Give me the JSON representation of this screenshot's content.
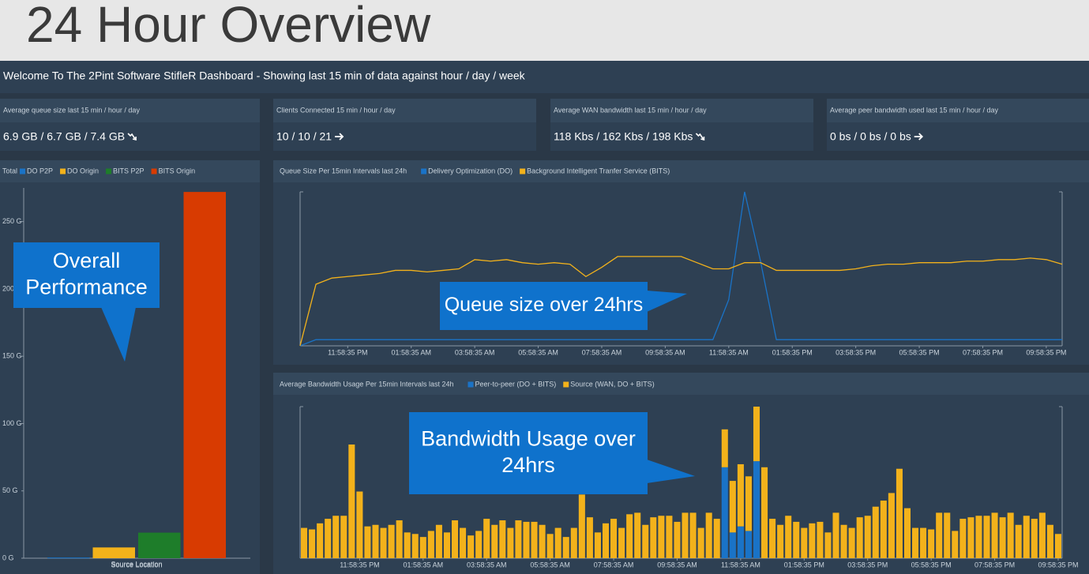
{
  "header": {
    "title": "24 Hour Overview"
  },
  "welcome": "Welcome To The 2Pint Software StifleR Dashboard - Showing last 15 min of data against hour / day / week",
  "tiles": [
    {
      "label": "Average queue size last 15 min / hour / day",
      "value": "6.9 GB / 6.7 GB / 7.4 GB",
      "trend": "down"
    },
    {
      "label": "Clients Connected 15 min / hour / day",
      "value": "10 / 10 / 21",
      "trend": "flat"
    },
    {
      "label": "Average WAN bandwidth last 15 min / hour / day",
      "value": "118 Kbs / 162 Kbs / 198 Kbs",
      "trend": "down"
    },
    {
      "label": "Average peer bandwidth used last 15 min / hour / day",
      "value": "0 bs / 0 bs / 0 bs",
      "trend": "flat"
    }
  ],
  "charts": [
    {
      "type": "bar",
      "legend_title": "Total",
      "xlabel": "Source Location",
      "categories": [
        "Source Location"
      ],
      "series": [
        {
          "name": "DO P2P",
          "color": "#1a73c7",
          "values": [
            0.5
          ]
        },
        {
          "name": "DO Origin",
          "color": "#f3b21b",
          "values": [
            8
          ]
        },
        {
          "name": "BITS P2P",
          "color": "#1e7d2a",
          "values": [
            19
          ]
        },
        {
          "name": "BITS Origin",
          "color": "#d83b01",
          "values": [
            272
          ]
        }
      ],
      "ylim": [
        0,
        275
      ],
      "yticks": [
        {
          "value": 0,
          "label": "0 G"
        },
        {
          "value": 50,
          "label": "50 G"
        },
        {
          "value": 100,
          "label": "100 G"
        },
        {
          "value": 150,
          "label": "150 G"
        },
        {
          "value": 200,
          "label": "200 G"
        },
        {
          "value": 250,
          "label": "250 G"
        }
      ],
      "annotation": [
        "Overall",
        "Performance"
      ]
    },
    {
      "type": "line",
      "title": "Queue Size Per 15min Intervals last 24h",
      "categories": [
        null,
        null,
        null,
        "11:58:35 PM",
        null,
        null,
        null,
        "01:58:35 AM",
        null,
        null,
        null,
        "03:58:35 AM",
        null,
        null,
        null,
        "05:58:35 AM",
        null,
        null,
        null,
        "07:58:35 AM",
        null,
        null,
        null,
        "09:58:35 AM",
        null,
        null,
        null,
        "11:58:35 AM",
        null,
        null,
        null,
        "01:58:35 PM",
        null,
        null,
        null,
        "03:58:35 PM",
        null,
        null,
        null,
        "05:58:35 PM",
        null,
        null,
        null,
        "07:58:35 PM",
        null,
        null,
        null,
        "09:58:35 PM",
        null
      ],
      "series": [
        {
          "name": "Delivery Optimization (DO)",
          "color": "#1a73c7",
          "values": [
            0,
            4,
            4,
            4,
            4,
            4,
            4,
            4,
            4,
            4,
            4,
            4,
            4,
            4,
            4,
            4,
            4,
            4,
            4,
            4,
            4,
            4,
            4,
            4,
            4,
            4,
            4,
            30,
            100,
            55,
            4,
            4,
            4,
            4,
            4,
            4,
            4,
            4,
            4,
            4,
            4,
            4,
            4,
            4,
            4,
            4,
            4,
            4,
            4
          ]
        },
        {
          "name": "Background Intelligent Tranfer Service (BITS)",
          "color": "#f3b21b",
          "values": [
            0,
            40,
            44,
            45,
            46,
            47,
            49,
            49,
            48,
            49,
            50,
            56,
            55,
            56,
            54,
            53,
            54,
            53,
            45,
            51,
            58,
            58,
            58,
            58,
            58,
            54,
            50,
            50,
            54,
            54,
            49,
            49,
            49,
            49,
            49,
            50,
            52,
            53,
            53,
            54,
            54,
            54,
            55,
            55,
            56,
            56,
            57,
            56,
            53
          ]
        }
      ],
      "ylim": [
        0,
        100
      ],
      "annotation": [
        "Queue size over 24hrs"
      ]
    },
    {
      "type": "bar",
      "stacked": true,
      "title": "Average Bandwidth Usage Per 15min Intervals last 24h",
      "categories": [
        null,
        null,
        null,
        null,
        null,
        null,
        null,
        "11:58:35 PM",
        null,
        null,
        null,
        null,
        null,
        null,
        null,
        "01:58:35 AM",
        null,
        null,
        null,
        null,
        null,
        null,
        null,
        "03:58:35 AM",
        null,
        null,
        null,
        null,
        null,
        null,
        null,
        "05:58:35 AM",
        null,
        null,
        null,
        null,
        null,
        null,
        null,
        "07:58:35 AM",
        null,
        null,
        null,
        null,
        null,
        null,
        null,
        "09:58:35 AM",
        null,
        null,
        null,
        null,
        null,
        null,
        null,
        "11:58:35 AM",
        null,
        null,
        null,
        null,
        null,
        null,
        null,
        "01:58:35 PM",
        null,
        null,
        null,
        null,
        null,
        null,
        null,
        "03:58:35 PM",
        null,
        null,
        null,
        null,
        null,
        null,
        null,
        "05:58:35 PM",
        null,
        null,
        null,
        null,
        null,
        null,
        null,
        "07:58:35 PM",
        null,
        null,
        null,
        null,
        null,
        null,
        null,
        "09:58:35 PM"
      ],
      "series": [
        {
          "name": "Peer-to-peer (DO + BITS)",
          "color": "#1a73c7",
          "values": [
            0,
            0,
            0,
            0,
            0,
            0,
            0,
            0,
            0,
            0,
            0,
            0,
            0,
            0,
            0,
            0,
            0,
            0,
            0,
            0,
            0,
            0,
            0,
            0,
            0,
            0,
            0,
            0,
            0,
            0,
            0,
            0,
            0,
            0,
            0,
            0,
            0,
            0,
            0,
            0,
            0,
            0,
            0,
            0,
            0,
            0,
            0,
            0,
            0,
            0,
            0,
            0,
            0,
            60,
            17,
            21,
            18,
            64,
            0,
            0,
            0,
            0,
            0,
            0,
            0,
            0,
            0,
            0,
            0,
            0,
            0,
            0,
            0,
            0,
            0,
            0,
            0,
            0,
            0,
            0,
            0,
            0,
            0,
            0,
            0,
            0,
            0,
            0,
            0,
            0,
            0,
            0,
            0,
            0,
            0,
            0
          ]
        },
        {
          "name": "Source (WAN, DO + BITS)",
          "color": "#f3b21b",
          "values": [
            20,
            19,
            23,
            26,
            28,
            28,
            75,
            44,
            21,
            22,
            20,
            22,
            25,
            17,
            16,
            14,
            18,
            22,
            17,
            25,
            20,
            15,
            18,
            26,
            22,
            25,
            20,
            25,
            24,
            24,
            22,
            16,
            20,
            14,
            20,
            42,
            27,
            17,
            23,
            26,
            20,
            29,
            30,
            22,
            27,
            28,
            28,
            24,
            30,
            30,
            20,
            30,
            26,
            25,
            34,
            41,
            36,
            36,
            60,
            26,
            22,
            28,
            24,
            20,
            23,
            24,
            17,
            30,
            22,
            20,
            27,
            28,
            34,
            38,
            43,
            59,
            33,
            20,
            20,
            19,
            30,
            30,
            18,
            26,
            27,
            28,
            28,
            30,
            27,
            30,
            22,
            28,
            26,
            30,
            22,
            16
          ]
        }
      ],
      "ylim": [
        0,
        100
      ],
      "annotation": [
        "Bandwidth Usage over",
        "24hrs"
      ]
    }
  ]
}
